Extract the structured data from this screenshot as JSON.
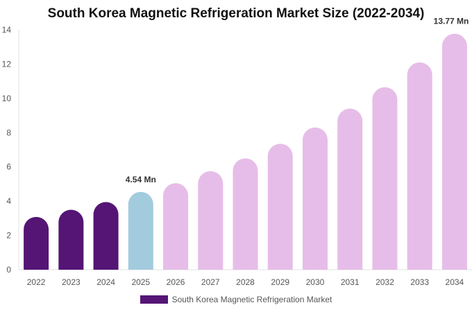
{
  "chart_data": {
    "type": "bar",
    "title": "South Korea Magnetic Refrigeration Market Size (2022-2034)",
    "xlabel": "",
    "ylabel": "",
    "ylim": [
      0,
      14
    ],
    "yticks": [
      0,
      2,
      4,
      6,
      8,
      10,
      12,
      14
    ],
    "grid": false,
    "categories": [
      "2022",
      "2023",
      "2024",
      "2025",
      "2026",
      "2027",
      "2028",
      "2029",
      "2030",
      "2031",
      "2032",
      "2033",
      "2034"
    ],
    "values": [
      3.08,
      3.5,
      3.95,
      4.54,
      5.05,
      5.75,
      6.5,
      7.35,
      8.3,
      9.4,
      10.65,
      12.1,
      13.77
    ],
    "colors": {
      "historic": "#541575",
      "current": "#a3cbde",
      "forecast": "#e6bde8"
    },
    "bar_roles": [
      "historic",
      "historic",
      "historic",
      "current",
      "forecast",
      "forecast",
      "forecast",
      "forecast",
      "forecast",
      "forecast",
      "forecast",
      "forecast",
      "forecast"
    ],
    "annotations": [
      {
        "category": "2025",
        "text": "4.54 Mn"
      },
      {
        "category": "2034",
        "text": "13.77 Mn"
      }
    ],
    "legend": {
      "position": "bottom",
      "entries": [
        {
          "label": "South Korea Magnetic Refrigeration Market",
          "color": "#541575"
        }
      ]
    }
  }
}
